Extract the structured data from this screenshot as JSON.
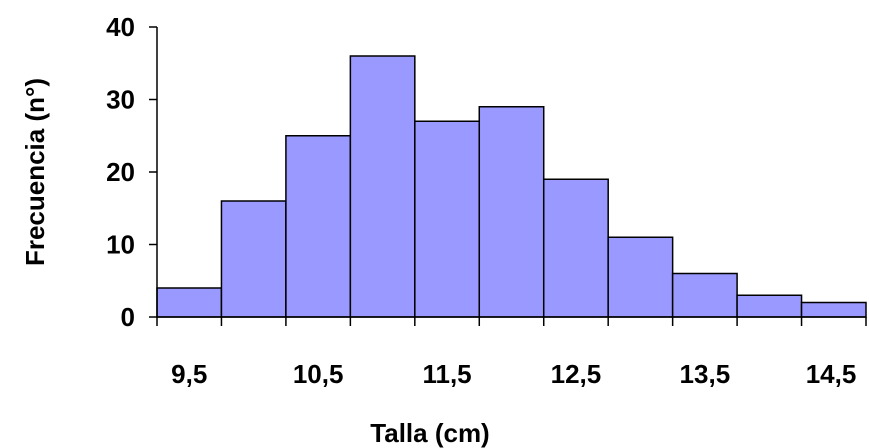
{
  "chart_data": {
    "type": "bar",
    "subtype": "histogram",
    "x_centers": [
      9.5,
      10.0,
      10.5,
      11.0,
      11.5,
      12.0,
      12.5,
      13.0,
      13.5,
      14.0,
      14.5
    ],
    "bin_width": 0.5,
    "values": [
      4,
      16,
      25,
      36,
      27,
      29,
      19,
      11,
      6,
      3,
      2
    ],
    "x_tick_labels": [
      "9,5",
      "10,5",
      "11,5",
      "12,5",
      "13,5",
      "14,5"
    ],
    "y_ticks": [
      0,
      10,
      20,
      30,
      40
    ],
    "xlabel": "Talla (cm)",
    "ylabel": "Frecuencia  (n°)",
    "xlim": [
      9.5,
      14.5
    ],
    "ylim": [
      0,
      40
    ],
    "grid": false,
    "legend": "none",
    "colors": {
      "bar_fill": "#9999FF",
      "bar_stroke": "#000000",
      "axis": "#000000"
    }
  }
}
